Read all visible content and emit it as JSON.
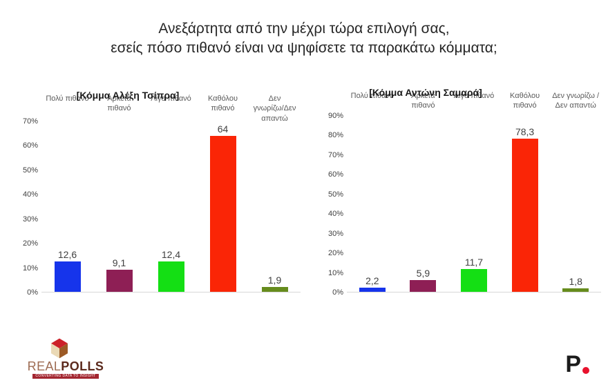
{
  "page": {
    "title": "Ανεξάρτητα από την μέχρι τώρα επιλογή σας,\nεσείς πόσο πιθανό είναι να ψηφίσετε τα παρακάτω κόμματα;"
  },
  "chart_data": [
    {
      "type": "bar",
      "title": "[Κόμμα Αλέξη Τσίπρα]",
      "categories": [
        "Πολύ πιθανό",
        "Αρκετά\nπιθανό",
        "Λίγο πιθανό",
        "Καθόλου\nπιθανό",
        "Δεν\nγνωρίζω/Δεν\nαπαντώ"
      ],
      "values": [
        12.6,
        9.1,
        12.4,
        64,
        1.9
      ],
      "value_labels": [
        "12,6",
        "9,1",
        "12,4",
        "64",
        "1,9"
      ],
      "bar_colors": [
        "#1634EB",
        "#8E1F55",
        "#14DF14",
        "#FA2506",
        "#668C1D"
      ],
      "xlabel": "",
      "ylabel": "",
      "ylim": [
        0,
        70
      ],
      "ytick_step": 10,
      "ytick_labels": [
        "0%",
        "10%",
        "20%",
        "30%",
        "40%",
        "50%",
        "60%",
        "70%"
      ],
      "grid": false,
      "legend": null
    },
    {
      "type": "bar",
      "title": "[Κόμμα Αντώνη Σαμαρά]",
      "categories": [
        "Πολύ πιθανό",
        "Αρκετά\nπιθανό",
        "Λίγο πιθανό",
        "Καθόλου\nπιθανό",
        "Δεν γνωρίζω /\nΔεν απαντώ"
      ],
      "values": [
        2.2,
        5.9,
        11.7,
        78.3,
        1.8
      ],
      "value_labels": [
        "2,2",
        "5,9",
        "11,7",
        "78,3",
        "1,8"
      ],
      "bar_colors": [
        "#1634EB",
        "#8E1F55",
        "#14DF14",
        "#FA2506",
        "#668C1D"
      ],
      "xlabel": "",
      "ylabel": "",
      "ylim": [
        0,
        90
      ],
      "ytick_step": 10,
      "ytick_labels": [
        "0%",
        "10%",
        "20%",
        "30%",
        "40%",
        "50%",
        "60%",
        "70%",
        "80%",
        "90%"
      ],
      "grid": false,
      "legend": null
    }
  ],
  "branding": {
    "realpolls": {
      "name_part1": "REAL",
      "name_part2": "POLLS",
      "tagline": "CONVERTING DATA TO INSIGHT",
      "cube_colors": {
        "top": "#CC2129",
        "left": "#EAD9B5",
        "right": "#9C5A26"
      }
    },
    "protothema": {
      "letter": "P",
      "dot_color": "#e8112d"
    }
  }
}
